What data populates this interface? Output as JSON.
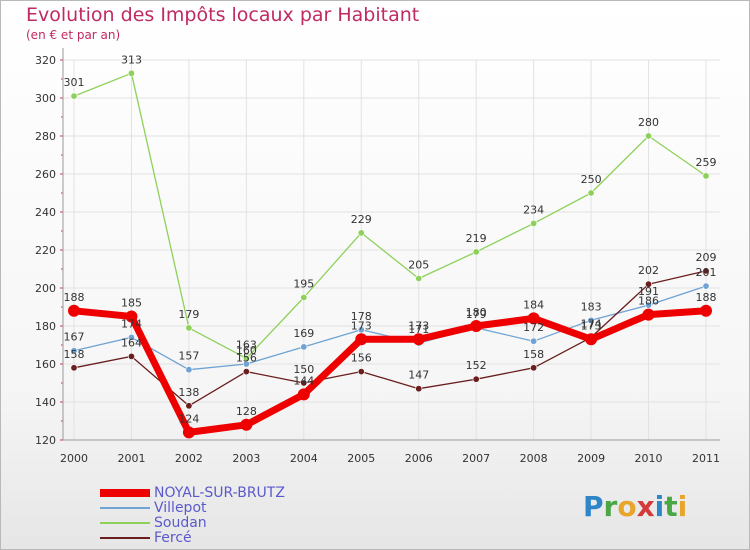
{
  "header": {
    "title": "Evolution des Impôts locaux par Habitant",
    "subtitle": "(en € et par an)"
  },
  "logo": {
    "text": "Proxiti",
    "letters": [
      "P",
      "r",
      "o",
      "x",
      "i",
      "t",
      "i"
    ],
    "colors": [
      "#2e86c9",
      "#49a843",
      "#e8a42b",
      "#d43a3a",
      "#2e86c9",
      "#49a843",
      "#e8a42b"
    ]
  },
  "chart_data": {
    "type": "line",
    "title": "Evolution des Impôts locaux par Habitant",
    "subtitle": "(en € et par an)",
    "xlabel": "",
    "ylabel": "",
    "ylim": [
      120,
      320
    ],
    "yticks": [
      120,
      140,
      160,
      180,
      200,
      220,
      240,
      260,
      280,
      300,
      320
    ],
    "grid": true,
    "legend_position": "bottom-left",
    "x": [
      "2000",
      "2001",
      "2002",
      "2003",
      "2004",
      "2005",
      "2006",
      "2007",
      "2008",
      "2009",
      "2010",
      "2011"
    ],
    "series": [
      {
        "name": "NOYAL-SUR-BRUTZ",
        "color": "#ee0000",
        "emphasis": true,
        "values": [
          188,
          185,
          124,
          128,
          144,
          173,
          173,
          180,
          184,
          173,
          186,
          188
        ],
        "labels": [
          "188",
          "185",
          "124",
          "128",
          "144",
          "173",
          "173",
          "180",
          "184",
          "173",
          "186",
          "188"
        ]
      },
      {
        "name": "Villepot",
        "color": "#6ea3d4",
        "emphasis": false,
        "values": [
          167,
          174,
          157,
          160,
          169,
          178,
          171,
          179,
          172,
          183,
          191,
          201
        ],
        "labels": [
          "167",
          "174",
          "157",
          "160",
          "169",
          "178",
          "171",
          "179",
          "172",
          "183",
          "191",
          "201"
        ]
      },
      {
        "name": "Soudan",
        "color": "#8ed15a",
        "emphasis": false,
        "values": [
          301,
          313,
          179,
          163,
          195,
          229,
          205,
          219,
          234,
          250,
          280,
          259
        ],
        "labels": [
          "301",
          "313",
          "179",
          "163",
          "195",
          "229",
          "205",
          "219",
          "234",
          "250",
          "280",
          "259"
        ]
      },
      {
        "name": "Fercé",
        "color": "#6a1f1f",
        "emphasis": false,
        "values": [
          158,
          164,
          138,
          156,
          150,
          156,
          147,
          152,
          158,
          174,
          202,
          209
        ],
        "labels": [
          "158",
          "164",
          "138",
          "156",
          "150",
          "156",
          "147",
          "152",
          "158",
          "174",
          "202",
          "209"
        ]
      }
    ]
  }
}
